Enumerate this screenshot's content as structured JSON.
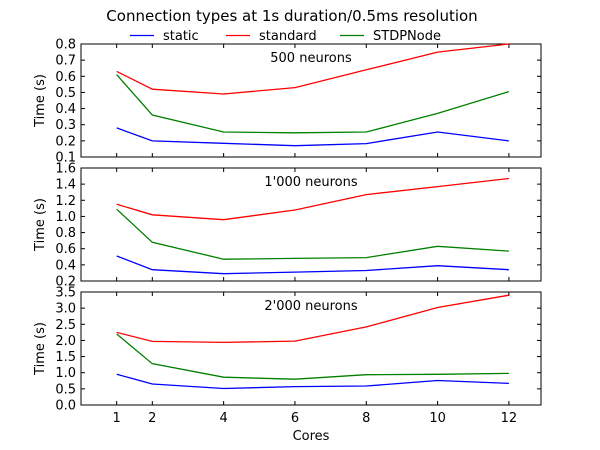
{
  "chart_data": {
    "type": "line",
    "title": "Connection types at 1s duration/0.5ms resolution",
    "xlabel": "Cores",
    "x": [
      1,
      2,
      4,
      6,
      8,
      10,
      12
    ],
    "xlim": [
      0,
      12.9
    ],
    "xticks": [
      1,
      2,
      4,
      6,
      8,
      10,
      12
    ],
    "legend": [
      {
        "name": "static",
        "color": "#0000ff"
      },
      {
        "name": "standard",
        "color": "#ff0000"
      },
      {
        "name": "STDPNode",
        "color": "#008000"
      }
    ],
    "legend_position": "top-center",
    "panels": [
      {
        "annotation": "500 neurons",
        "ylabel": "Time (s)",
        "ylim": [
          0.1,
          0.8
        ],
        "yticks": [
          "0.1",
          "0.2",
          "0.3",
          "0.4",
          "0.5",
          "0.6",
          "0.7",
          "0.8"
        ],
        "series": [
          {
            "name": "static",
            "color": "#0000ff",
            "values": [
              0.28,
              0.2,
              0.185,
              0.17,
              0.183,
              0.255,
              0.2
            ]
          },
          {
            "name": "standard",
            "color": "#ff0000",
            "values": [
              0.63,
              0.52,
              0.49,
              0.53,
              0.64,
              0.75,
              0.8
            ]
          },
          {
            "name": "STDPNode",
            "color": "#008000",
            "values": [
              0.61,
              0.36,
              0.255,
              0.25,
              0.255,
              0.37,
              0.505
            ]
          }
        ]
      },
      {
        "annotation": "1'000 neurons",
        "ylabel": "Time (s)",
        "ylim": [
          0.2,
          1.6
        ],
        "yticks": [
          "0.2",
          "0.4",
          "0.6",
          "0.8",
          "1.0",
          "1.2",
          "1.4",
          "1.6"
        ],
        "series": [
          {
            "name": "static",
            "color": "#0000ff",
            "values": [
              0.51,
              0.34,
              0.29,
              0.31,
              0.33,
              0.39,
              0.34
            ]
          },
          {
            "name": "standard",
            "color": "#ff0000",
            "values": [
              1.15,
              1.02,
              0.96,
              1.08,
              1.27,
              1.37,
              1.47
            ]
          },
          {
            "name": "STDPNode",
            "color": "#008000",
            "values": [
              1.09,
              0.68,
              0.47,
              0.48,
              0.49,
              0.63,
              0.57
            ]
          }
        ]
      },
      {
        "annotation": "2'000 neurons",
        "ylabel": "Time (s)",
        "ylim": [
          0.0,
          3.5
        ],
        "yticks": [
          "0.0",
          "0.5",
          "1.0",
          "1.5",
          "2.0",
          "2.5",
          "3.0",
          "3.5"
        ],
        "series": [
          {
            "name": "static",
            "color": "#0000ff",
            "values": [
              0.95,
              0.65,
              0.51,
              0.57,
              0.59,
              0.76,
              0.67
            ]
          },
          {
            "name": "standard",
            "color": "#ff0000",
            "values": [
              2.25,
              1.97,
              1.94,
              1.98,
              2.42,
              3.02,
              3.4
            ]
          },
          {
            "name": "STDPNode",
            "color": "#008000",
            "values": [
              2.2,
              1.28,
              0.86,
              0.8,
              0.94,
              0.95,
              0.98
            ]
          }
        ]
      }
    ]
  }
}
